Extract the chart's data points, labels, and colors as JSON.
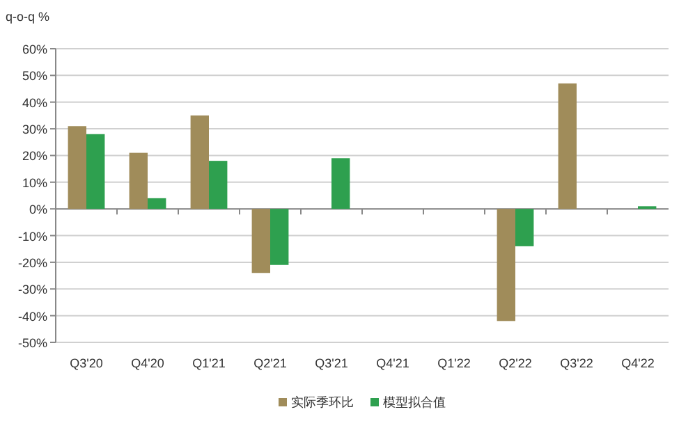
{
  "chart_data": {
    "type": "bar",
    "ylabel": "q-o-q %",
    "categories": [
      "Q3'20",
      "Q4'20",
      "Q1'21",
      "Q2'21",
      "Q3'21",
      "Q4'21",
      "Q1'22",
      "Q2'22",
      "Q3'22",
      "Q4'22"
    ],
    "series": [
      {
        "name": "实际季环比",
        "color": "#a08c5a",
        "values": [
          31,
          21,
          35,
          -24,
          null,
          null,
          null,
          -42,
          47,
          null
        ]
      },
      {
        "name": "模型拟合值",
        "color": "#2ea04f",
        "values": [
          28,
          4,
          18,
          -21,
          19,
          null,
          null,
          -14,
          null,
          1
        ]
      }
    ],
    "ylim": [
      -50,
      60
    ],
    "yticks": [
      {
        "value": -50,
        "label": "-50%"
      },
      {
        "value": -40,
        "label": "-40%"
      },
      {
        "value": -30,
        "label": "-30%"
      },
      {
        "value": -20,
        "label": "-20%"
      },
      {
        "value": -10,
        "label": "-10%"
      },
      {
        "value": 0,
        "label": "0%"
      },
      {
        "value": 10,
        "label": "10%"
      },
      {
        "value": 20,
        "label": "20%"
      },
      {
        "value": 30,
        "label": "30%"
      },
      {
        "value": 40,
        "label": "40%"
      },
      {
        "value": 50,
        "label": "50%"
      },
      {
        "value": 60,
        "label": "60%"
      }
    ],
    "grid": "y",
    "legend": "bottom"
  }
}
